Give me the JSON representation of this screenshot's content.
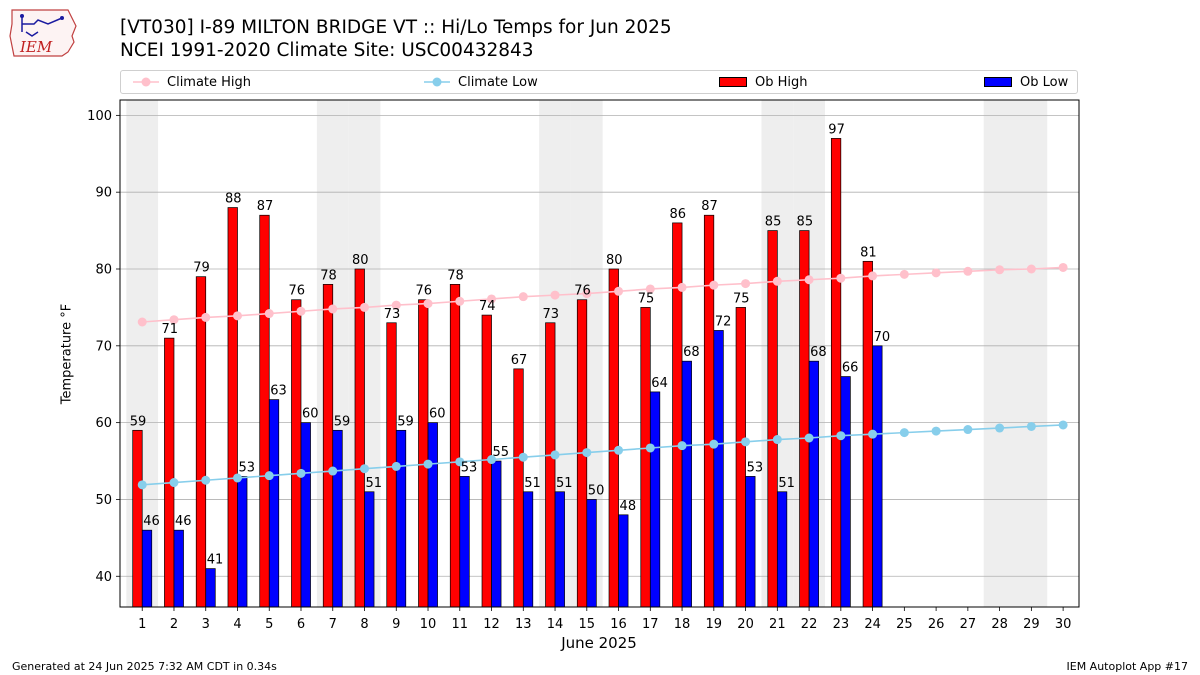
{
  "header": {
    "title": "[VT030] I-89 MILTON BRIDGE  VT :: Hi/Lo Temps for Jun 2025",
    "subtitle": "NCEI 1991-2020 Climate Site: USC00432843"
  },
  "logo": {
    "text": "IEM",
    "icon": "iowa-state-map-logo"
  },
  "legend": {
    "climate_high": "Climate High",
    "climate_low": "Climate Low",
    "ob_high": "Ob High",
    "ob_low": "Ob Low"
  },
  "footer": {
    "left": "Generated at 24 Jun 2025 7:32 AM CDT in 0.34s",
    "right": "IEM Autoplot App #17"
  },
  "colors": {
    "ob_high": "#ff0000",
    "ob_low": "#0000ff",
    "climate_high": "#ffc0cb",
    "climate_low": "#87ceeb",
    "weekend_band": "#eeeeee",
    "grid": "#b0b0b0"
  },
  "chart_data": {
    "type": "bar",
    "xlabel": "June 2025",
    "ylabel": "Temperature °F",
    "ylim": [
      36,
      102
    ],
    "yticks": [
      40,
      50,
      60,
      70,
      80,
      90,
      100
    ],
    "grid": "horizontal",
    "legend_position": "top",
    "categories": [
      "1",
      "2",
      "3",
      "4",
      "5",
      "6",
      "7",
      "8",
      "9",
      "10",
      "11",
      "12",
      "13",
      "14",
      "15",
      "16",
      "17",
      "18",
      "19",
      "20",
      "21",
      "22",
      "23",
      "24",
      "25",
      "26",
      "27",
      "28",
      "29",
      "30"
    ],
    "weekend_days": [
      1,
      7,
      8,
      14,
      15,
      21,
      22,
      28,
      29
    ],
    "series": [
      {
        "name": "Ob High",
        "kind": "bar",
        "values": [
          59,
          71,
          79,
          88,
          87,
          76,
          78,
          80,
          73,
          76,
          78,
          74,
          67,
          73,
          76,
          80,
          75,
          86,
          87,
          75,
          85,
          85,
          97,
          81,
          null,
          null,
          null,
          null,
          null,
          null
        ]
      },
      {
        "name": "Ob Low",
        "kind": "bar",
        "values": [
          46,
          46,
          41,
          53,
          63,
          60,
          59,
          51,
          59,
          60,
          53,
          55,
          51,
          51,
          50,
          48,
          64,
          68,
          72,
          53,
          51,
          68,
          66,
          70,
          null,
          null,
          null,
          null,
          null,
          null
        ]
      },
      {
        "name": "Climate High",
        "kind": "line",
        "values": [
          73.1,
          73.4,
          73.7,
          73.9,
          74.2,
          74.5,
          74.8,
          75.0,
          75.3,
          75.5,
          75.8,
          76.1,
          76.4,
          76.6,
          76.8,
          77.1,
          77.4,
          77.6,
          77.9,
          78.1,
          78.4,
          78.6,
          78.8,
          79.1,
          79.3,
          79.5,
          79.7,
          79.9,
          80.0,
          80.2
        ]
      },
      {
        "name": "Climate Low",
        "kind": "line",
        "values": [
          51.9,
          52.2,
          52.5,
          52.8,
          53.1,
          53.4,
          53.7,
          54.0,
          54.3,
          54.6,
          54.9,
          55.2,
          55.5,
          55.8,
          56.1,
          56.4,
          56.7,
          57.0,
          57.2,
          57.5,
          57.8,
          58.0,
          58.3,
          58.5,
          58.7,
          58.9,
          59.1,
          59.3,
          59.5,
          59.7
        ]
      }
    ]
  }
}
